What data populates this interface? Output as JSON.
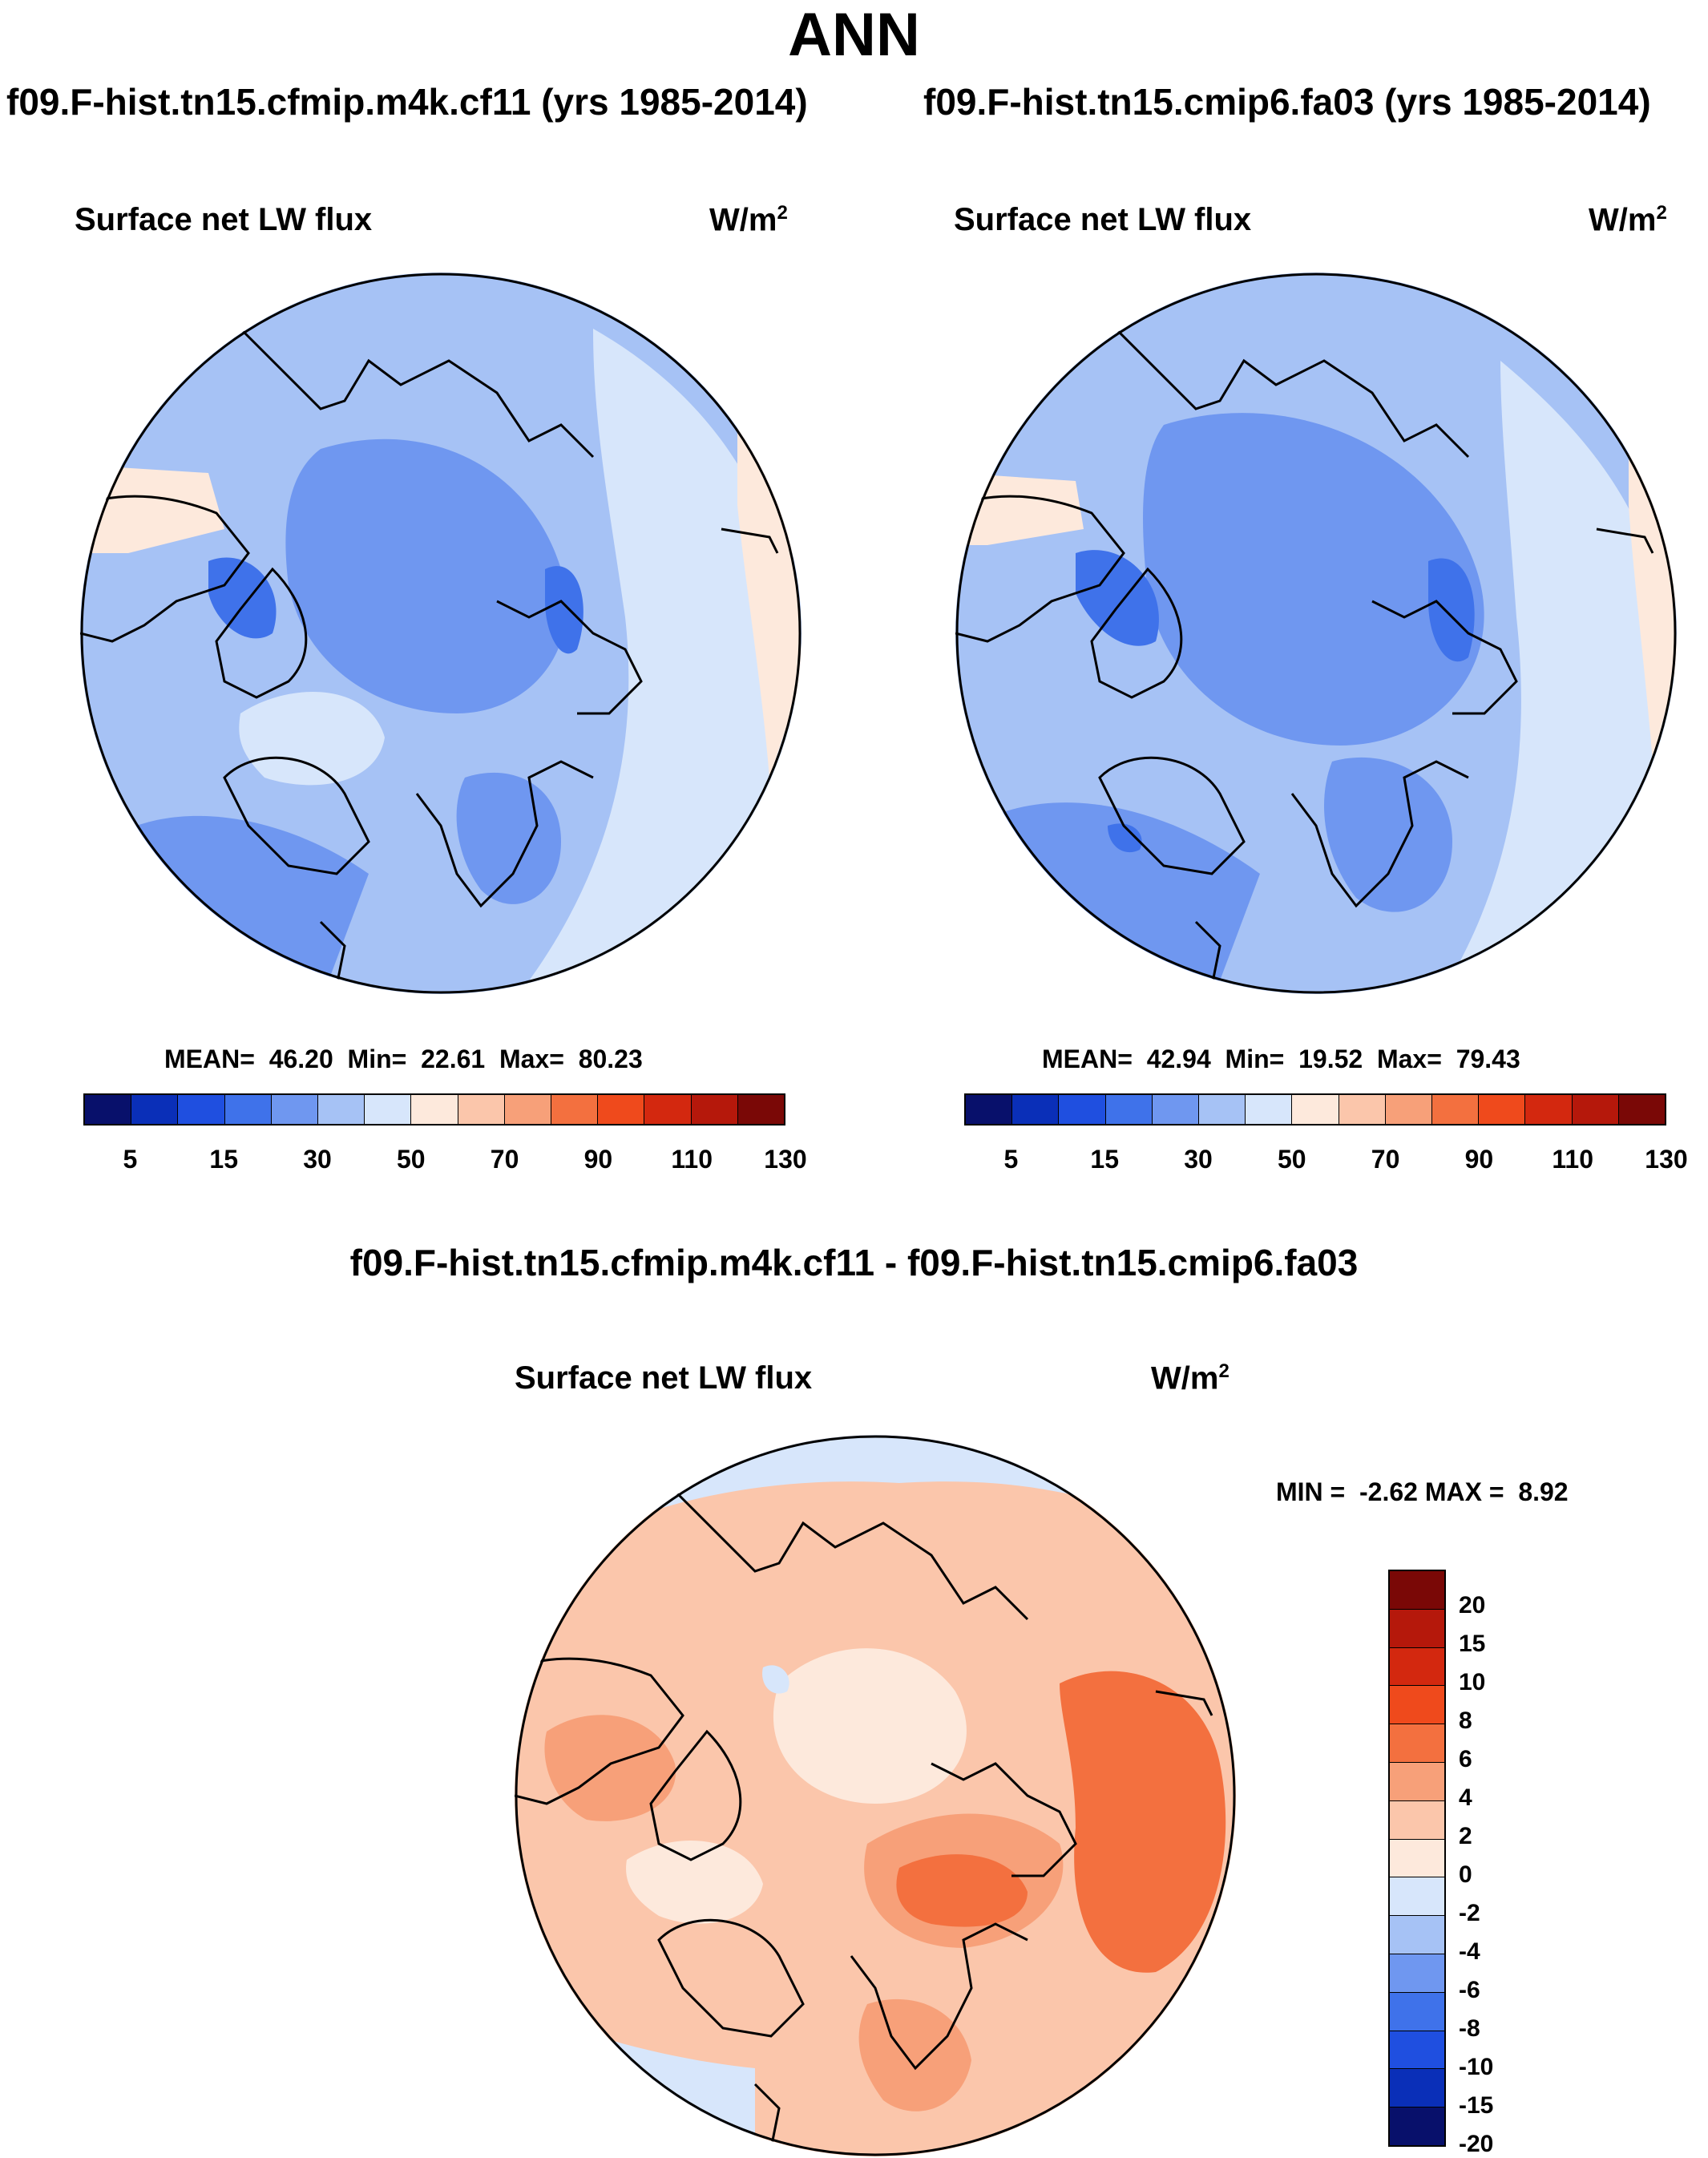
{
  "title": "ANN",
  "panels": [
    {
      "case_title": "f09.F-hist.tn15.cfmip.m4k.cf11 (yrs 1985-2014)",
      "label": "Surface net LW flux",
      "units_base": "W/m",
      "units_exp": "2",
      "stats": {
        "mean_label": "MEAN=",
        "mean": "46.20",
        "min_label": "Min=",
        "min": "22.61",
        "max_label": "Max=",
        "max": "80.23"
      }
    },
    {
      "case_title": "f09.F-hist.tn15.cmip6.fa03 (yrs 1985-2014)",
      "label": "Surface net LW flux",
      "units_base": "W/m",
      "units_exp": "2",
      "stats": {
        "mean_label": "MEAN=",
        "mean": "42.94",
        "min_label": "Min=",
        "min": "19.52",
        "max_label": "Max=",
        "max": "79.43"
      }
    }
  ],
  "difference": {
    "title": "f09.F-hist.tn15.cfmip.m4k.cf11 - f09.F-hist.tn15.cmip6.fa03",
    "label": "Surface net LW flux",
    "units_base": "W/m",
    "units_exp": "2",
    "stats": {
      "min_label": "MIN =",
      "min": "-2.62",
      "max_label": "MAX =",
      "max": "8.92"
    }
  },
  "colorbar_abs": {
    "colors": [
      "#08106b",
      "#0a2fb8",
      "#1f4fe0",
      "#3f72ea",
      "#6f97f0",
      "#a6c2f5",
      "#d7e6fb",
      "#fde9dc",
      "#fbc6ab",
      "#f7a079",
      "#f3703f",
      "#ef4a1c",
      "#d3280f",
      "#b5180b",
      "#7a0806"
    ],
    "tick_labels": [
      "5",
      "15",
      "30",
      "50",
      "70",
      "90",
      "110",
      "130"
    ]
  },
  "colorbar_diff": {
    "colors": [
      "#7a0806",
      "#b5180b",
      "#d3280f",
      "#ef4a1c",
      "#f3703f",
      "#f7a079",
      "#fbc6ab",
      "#fde9dc",
      "#d7e6fb",
      "#a6c2f5",
      "#6f97f0",
      "#3f72ea",
      "#1f4fe0",
      "#0a2fb8",
      "#08106b"
    ],
    "tick_labels": [
      "20",
      "15",
      "10",
      "8",
      "6",
      "4",
      "2",
      "0",
      "-2",
      "-4",
      "-6",
      "-8",
      "-10",
      "-15",
      "-20"
    ]
  },
  "map_colors": {
    "abs_base": "#a6c2f5",
    "abs_core": "#6f97f0",
    "abs_deep": "#3f72ea",
    "abs_warm": "#fde9dc",
    "abs_light": "#d7e6fb",
    "diff_base": "#fbc6ab",
    "diff_mid": "#f7a079",
    "diff_hot": "#f3703f",
    "diff_cool": "#d7e6fb",
    "diff_neutral": "#fde9dc"
  }
}
